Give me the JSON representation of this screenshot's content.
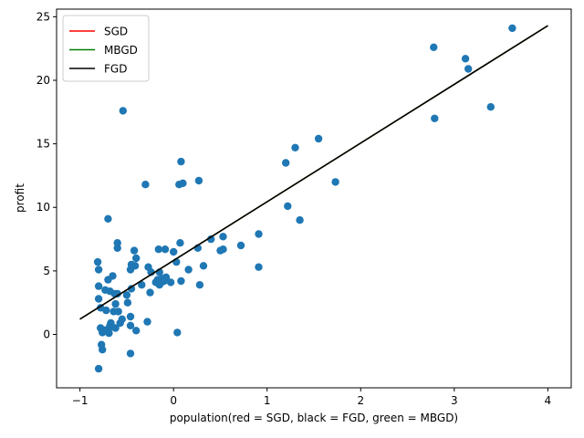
{
  "chart_data": {
    "type": "scatter",
    "title": "",
    "xlabel": "population(red = SGD, black = FGD, green = MBGD)",
    "ylabel": "profit",
    "xlim": [
      -1.25,
      4.25
    ],
    "ylim": [
      -4.2,
      25.6
    ],
    "xticks": [
      -1,
      0,
      1,
      2,
      3,
      4
    ],
    "yticks": [
      0,
      5,
      10,
      15,
      20,
      25
    ],
    "grid": false,
    "legend_position": "top-left",
    "colors": {
      "points": "#1f77b4",
      "SGD": "#ff0000",
      "MBGD": "#008000",
      "FGD": "#000000"
    },
    "series": [
      {
        "name": "SGD",
        "type": "line",
        "x": [
          -1,
          4
        ],
        "y": [
          1.2,
          24.3
        ]
      },
      {
        "name": "MBGD",
        "type": "line",
        "x": [
          -1,
          4
        ],
        "y": [
          1.2,
          24.3
        ]
      },
      {
        "name": "FGD",
        "type": "line",
        "x": [
          -1,
          4
        ],
        "y": [
          1.2,
          24.3
        ]
      }
    ],
    "points": [
      [
        -0.8,
        -2.7
      ],
      [
        -0.77,
        -0.8
      ],
      [
        -0.76,
        -1.2
      ],
      [
        -0.46,
        -1.5
      ],
      [
        -0.78,
        0.5
      ],
      [
        -0.76,
        0.15
      ],
      [
        -0.72,
        0.35
      ],
      [
        -0.69,
        0.1
      ],
      [
        -0.68,
        0.7
      ],
      [
        -0.67,
        0.9
      ],
      [
        -0.66,
        0.6
      ],
      [
        -0.62,
        0.5
      ],
      [
        -0.57,
        0.9
      ],
      [
        -0.55,
        1.2
      ],
      [
        -0.46,
        0.7
      ],
      [
        -0.4,
        0.3
      ],
      [
        -0.28,
        1.0
      ],
      [
        0.04,
        0.15
      ],
      [
        -0.8,
        2.8
      ],
      [
        -0.78,
        2.1
      ],
      [
        -0.72,
        1.9
      ],
      [
        -0.64,
        1.8
      ],
      [
        -0.62,
        2.4
      ],
      [
        -0.59,
        1.8
      ],
      [
        -0.49,
        2.5
      ],
      [
        -0.46,
        1.4
      ],
      [
        -0.8,
        3.8
      ],
      [
        -0.73,
        3.5
      ],
      [
        -0.68,
        3.4
      ],
      [
        -0.63,
        3.2
      ],
      [
        -0.6,
        3.2
      ],
      [
        -0.5,
        3.1
      ],
      [
        -0.45,
        3.6
      ],
      [
        -0.34,
        3.9
      ],
      [
        -0.25,
        3.3
      ],
      [
        -0.81,
        5.7
      ],
      [
        -0.8,
        5.1
      ],
      [
        -0.7,
        4.3
      ],
      [
        -0.65,
        4.6
      ],
      [
        -0.46,
        5.1
      ],
      [
        -0.45,
        5.5
      ],
      [
        -0.41,
        5.4
      ],
      [
        -0.4,
        6.0
      ],
      [
        -0.42,
        6.6
      ],
      [
        -0.6,
        6.8
      ],
      [
        -0.6,
        7.2
      ],
      [
        -0.27,
        5.3
      ],
      [
        -0.24,
        4.9
      ],
      [
        -0.19,
        4.1
      ],
      [
        -0.17,
        4.3
      ],
      [
        -0.15,
        3.9
      ],
      [
        -0.13,
        4.1
      ],
      [
        -0.12,
        4.4
      ],
      [
        -0.15,
        4.9
      ],
      [
        -0.1,
        4.2
      ],
      [
        -0.08,
        4.5
      ],
      [
        -0.03,
        4.1
      ],
      [
        -0.16,
        6.7
      ],
      [
        -0.09,
        6.7
      ],
      [
        0.0,
        6.5
      ],
      [
        0.07,
        7.2
      ],
      [
        0.03,
        5.7
      ],
      [
        0.08,
        4.2
      ],
      [
        0.16,
        5.1
      ],
      [
        0.32,
        5.4
      ],
      [
        0.28,
        3.9
      ],
      [
        0.26,
        6.8
      ],
      [
        0.4,
        7.5
      ],
      [
        0.5,
        6.6
      ],
      [
        0.53,
        6.7
      ],
      [
        0.53,
        7.7
      ],
      [
        0.72,
        7.0
      ],
      [
        0.91,
        7.9
      ],
      [
        0.91,
        5.3
      ],
      [
        -0.7,
        9.1
      ],
      [
        -0.3,
        11.8
      ],
      [
        0.06,
        11.8
      ],
      [
        0.1,
        11.9
      ],
      [
        0.27,
        12.1
      ],
      [
        0.08,
        13.6
      ],
      [
        -0.54,
        17.6
      ],
      [
        1.22,
        10.1
      ],
      [
        1.35,
        9.0
      ],
      [
        1.2,
        13.5
      ],
      [
        1.3,
        14.7
      ],
      [
        1.55,
        15.4
      ],
      [
        1.73,
        12.0
      ],
      [
        2.78,
        22.6
      ],
      [
        2.79,
        17.0
      ],
      [
        3.12,
        21.7
      ],
      [
        3.15,
        20.9
      ],
      [
        3.39,
        17.9
      ],
      [
        3.62,
        24.1
      ]
    ],
    "legend": [
      {
        "label": "SGD",
        "color": "#ff0000"
      },
      {
        "label": "MBGD",
        "color": "#008000"
      },
      {
        "label": "FGD",
        "color": "#000000"
      }
    ]
  }
}
